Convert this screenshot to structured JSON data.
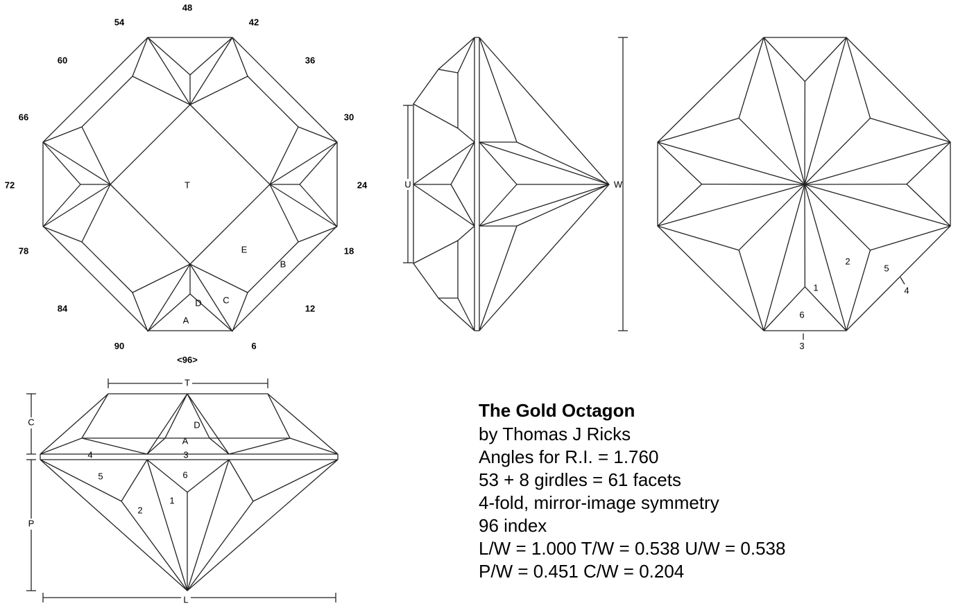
{
  "top_view": {
    "index_labels": [
      "48",
      "42",
      "36",
      "30",
      "24",
      "18",
      "12",
      "6",
      "<96>",
      "90",
      "84",
      "78",
      "72",
      "66",
      "60",
      "54"
    ],
    "facet_labels": [
      "T",
      "E",
      "B",
      "C",
      "D",
      "A"
    ]
  },
  "side_view": {
    "dimension_labels": [
      "U",
      "W"
    ]
  },
  "pavilion_view": {
    "facet_labels": [
      "1",
      "2",
      "5",
      "4",
      "6",
      "3"
    ]
  },
  "profile_view": {
    "dimension_labels": [
      "T",
      "C",
      "P",
      "L"
    ],
    "facet_labels": [
      "D",
      "A",
      "3",
      "4",
      "6",
      "5",
      "2",
      "1"
    ]
  },
  "info": {
    "title": "The Gold Octagon",
    "lines": [
      "by Thomas J Ricks",
      "Angles for R.I. = 1.760",
      "53 + 8 girdles = 61 facets",
      "4-fold, mirror-image symmetry",
      "96 index",
      "L/W = 1.000 T/W = 0.538 U/W = 0.538",
      "P/W = 0.451 C/W = 0.204"
    ]
  }
}
